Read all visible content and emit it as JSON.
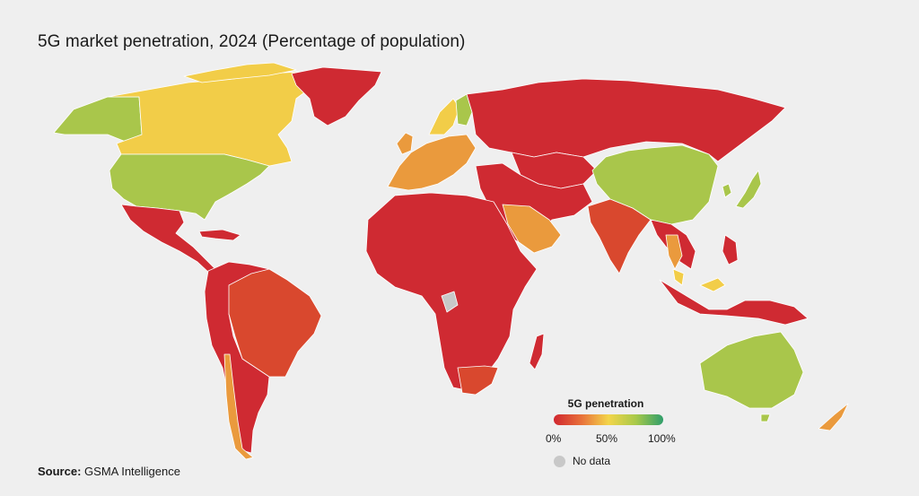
{
  "title": "5G market penetration, 2024 (Percentage of population)",
  "legend": {
    "title": "5G penetration",
    "tick_min": "0%",
    "tick_mid": "50%",
    "tick_max": "100%",
    "no_data_label": "No data"
  },
  "source": {
    "label": "Source:",
    "text": "GSMA Intelligence"
  },
  "colors": {
    "background": "#efefef",
    "scale_0": "#d0262f",
    "scale_25": "#e8703a",
    "scale_50": "#f3d54a",
    "scale_75": "#a8c94a",
    "scale_100": "#2f9e6b",
    "no_data": "#c8c8c8",
    "lowest": "#cf2a32",
    "low": "#d9482e",
    "mid_low": "#ea9a3d",
    "mid": "#f2cd48",
    "high": "#a9c64b"
  },
  "regions": [
    {
      "name": "Canada",
      "band": "mid"
    },
    {
      "name": "Alaska",
      "band": "high"
    },
    {
      "name": "United States",
      "band": "high"
    },
    {
      "name": "Mexico and Central America",
      "band": "lowest"
    },
    {
      "name": "Brazil",
      "band": "low"
    },
    {
      "name": "South America (other)",
      "band": "lowest"
    },
    {
      "name": "Chile",
      "band": "mid_low"
    },
    {
      "name": "Greenland",
      "band": "lowest"
    },
    {
      "name": "Western Europe",
      "band": "mid_low"
    },
    {
      "name": "Nordics",
      "band": "mid"
    },
    {
      "name": "Finland",
      "band": "high"
    },
    {
      "name": "Russia and Central Asia",
      "band": "lowest"
    },
    {
      "name": "Africa",
      "band": "lowest"
    },
    {
      "name": "South Africa",
      "band": "low"
    },
    {
      "name": "Middle East",
      "band": "lowest"
    },
    {
      "name": "Saudi Arabia",
      "band": "mid_low"
    },
    {
      "name": "India",
      "band": "low"
    },
    {
      "name": "China",
      "band": "high"
    },
    {
      "name": "South Korea",
      "band": "high"
    },
    {
      "name": "Japan",
      "band": "high"
    },
    {
      "name": "Southeast Asia",
      "band": "lowest"
    },
    {
      "name": "Thailand",
      "band": "mid_low"
    },
    {
      "name": "Malaysia",
      "band": "mid"
    },
    {
      "name": "Indonesia",
      "band": "lowest"
    },
    {
      "name": "Australia",
      "band": "high"
    },
    {
      "name": "New Zealand",
      "band": "mid_low"
    },
    {
      "name": "Madagascar",
      "band": "lowest"
    },
    {
      "name": "Gabon",
      "band": "no_data"
    }
  ]
}
